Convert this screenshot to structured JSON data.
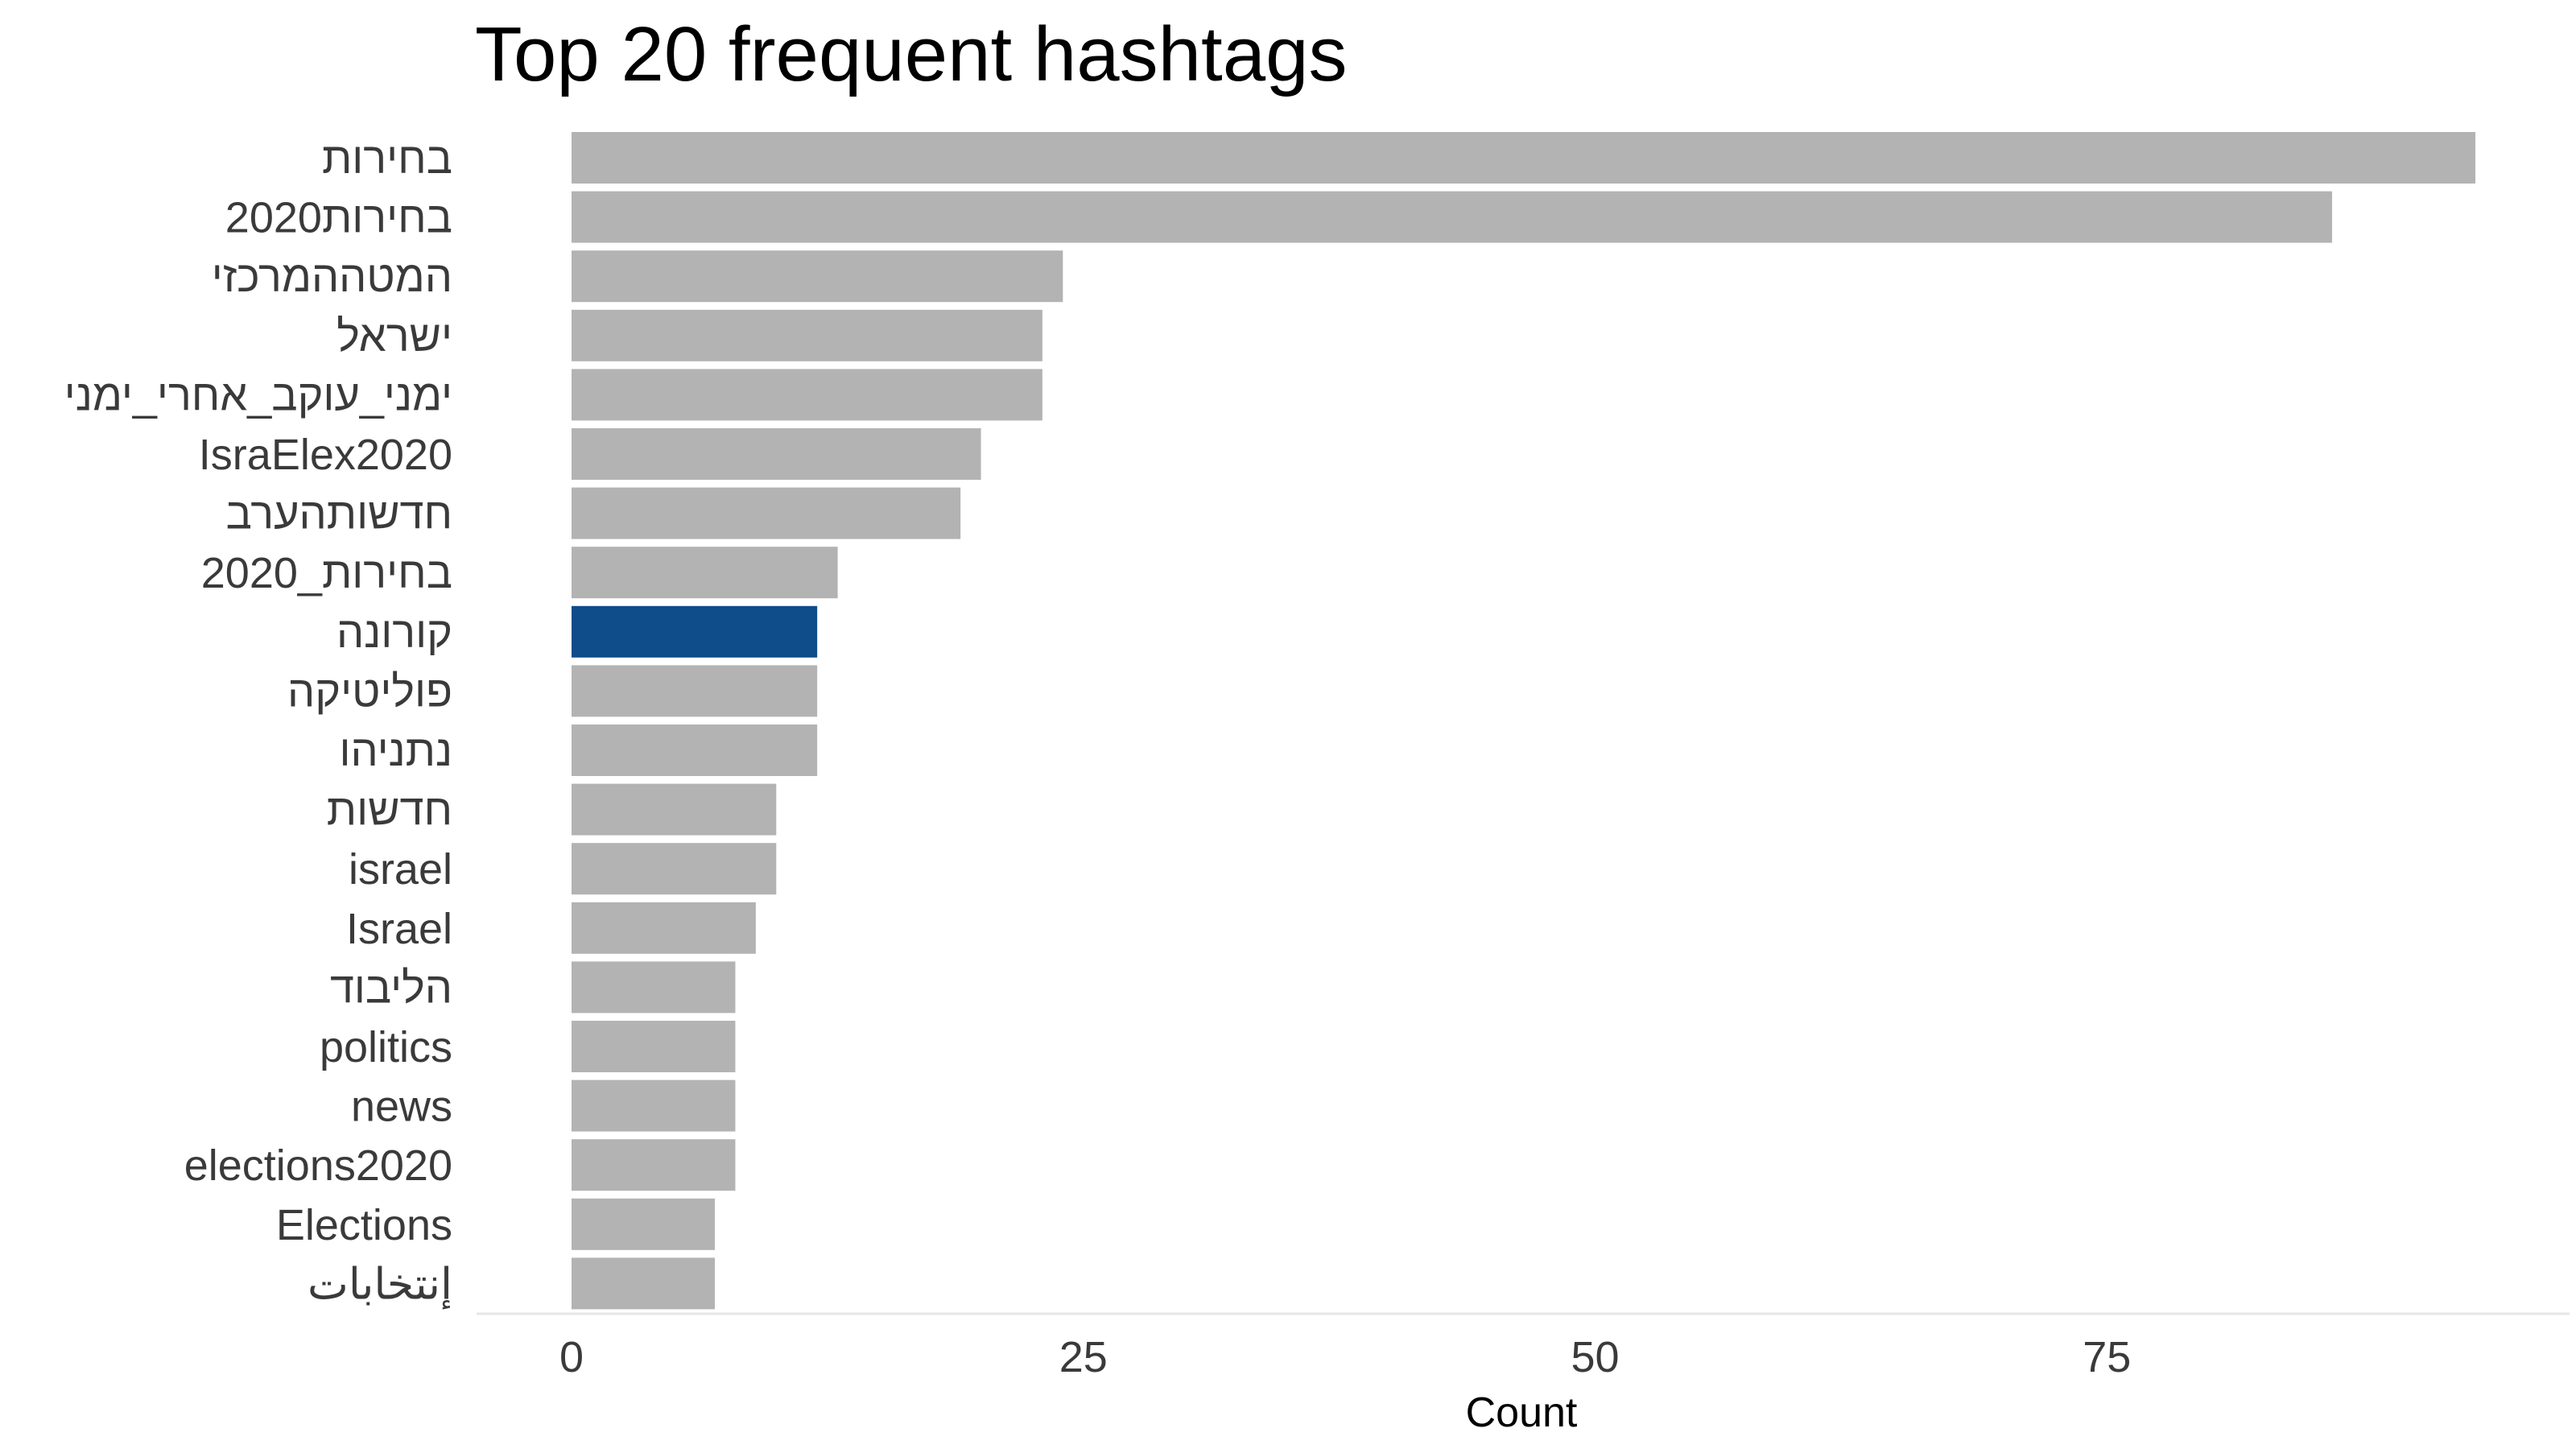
{
  "chart_data": {
    "type": "bar",
    "orientation": "horizontal",
    "title": "Top 20 frequent hashtags",
    "xlabel": "Count",
    "ylabel": "",
    "xlim": [
      0,
      93
    ],
    "xticks": [
      0,
      25,
      50,
      75
    ],
    "grid": false,
    "legend": "none",
    "categories": [
      "בחירות",
      "בחירות2020",
      "המטההמרכזי",
      "ישראל",
      "ימני_עוקב_אחרי_ימני",
      "IsraElex2020",
      "חדשותהערב",
      "בחירות_2020",
      "קורונה",
      "פוליטיקה",
      "נתניהו",
      "חדשות",
      "israel",
      "Israel",
      "הליבוד",
      "politics",
      "news",
      "elections2020",
      "Elections",
      "إنتخابات"
    ],
    "values": [
      93,
      86,
      24,
      23,
      23,
      20,
      19,
      13,
      12,
      12,
      12,
      10,
      10,
      9,
      8,
      8,
      8,
      8,
      7,
      7
    ],
    "highlight_index": 8,
    "colors": {
      "bar": "#b3b3b3",
      "highlight": "#0f4c8a",
      "axis_line": "#e6e6e6"
    }
  }
}
